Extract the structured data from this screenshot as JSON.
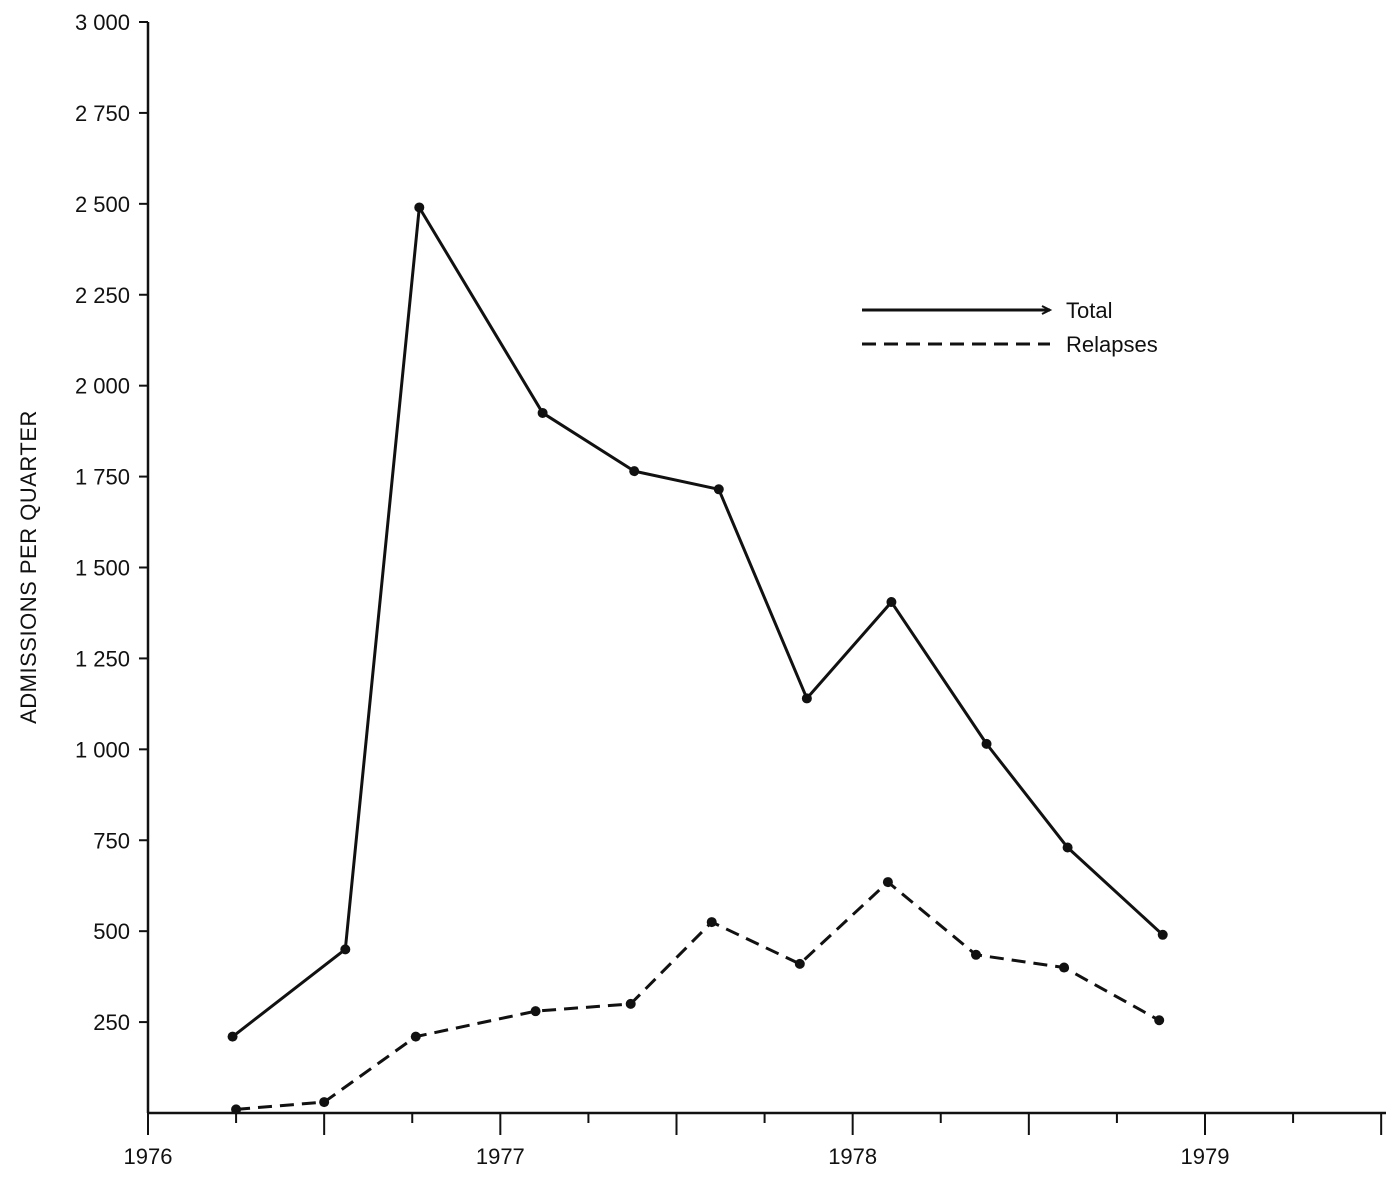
{
  "chart_data": {
    "type": "line",
    "ylabel": "ADMISSIONS PER QUARTER",
    "xlabel": "",
    "ylim": [
      0,
      3000
    ],
    "xlim": [
      1976,
      1979.5
    ],
    "y_ticks": [
      {
        "value": 250,
        "label": "250"
      },
      {
        "value": 500,
        "label": "500"
      },
      {
        "value": 750,
        "label": "750"
      },
      {
        "value": 1000,
        "label": "1 000"
      },
      {
        "value": 1250,
        "label": "1 250"
      },
      {
        "value": 1500,
        "label": "1 500"
      },
      {
        "value": 1750,
        "label": "1 750"
      },
      {
        "value": 2000,
        "label": "2 000"
      },
      {
        "value": 2250,
        "label": "2 250"
      },
      {
        "value": 2500,
        "label": "2 500"
      },
      {
        "value": 2750,
        "label": "2 750"
      },
      {
        "value": 3000,
        "label": "3 000"
      }
    ],
    "x_ticks": [
      {
        "value": 1976,
        "label": "1976"
      },
      {
        "value": 1977,
        "label": "1977"
      },
      {
        "value": 1978,
        "label": "1978"
      },
      {
        "value": 1979,
        "label": "1979"
      }
    ],
    "x_minor_ticks": [
      1976.25,
      1976.5,
      1976.75,
      1977.25,
      1977.5,
      1977.75,
      1978.25,
      1978.5,
      1978.75,
      1979.25,
      1979.5
    ],
    "grid": false,
    "legend_position": "top-right",
    "series": [
      {
        "name": "Total",
        "style": "solid",
        "x": [
          1976.24,
          1976.56,
          1976.77,
          1977.12,
          1977.38,
          1977.62,
          1977.87,
          1978.11,
          1978.38,
          1978.61,
          1978.88
        ],
        "y": [
          210,
          450,
          2490,
          1925,
          1765,
          1715,
          1140,
          1405,
          1015,
          730,
          490
        ]
      },
      {
        "name": "Relapses",
        "style": "dashed",
        "x": [
          1976.25,
          1976.5,
          1976.76,
          1977.1,
          1977.37,
          1977.6,
          1977.85,
          1978.1,
          1978.35,
          1978.6,
          1978.87
        ],
        "y": [
          10,
          30,
          210,
          280,
          300,
          525,
          410,
          635,
          435,
          400,
          255
        ]
      }
    ]
  }
}
